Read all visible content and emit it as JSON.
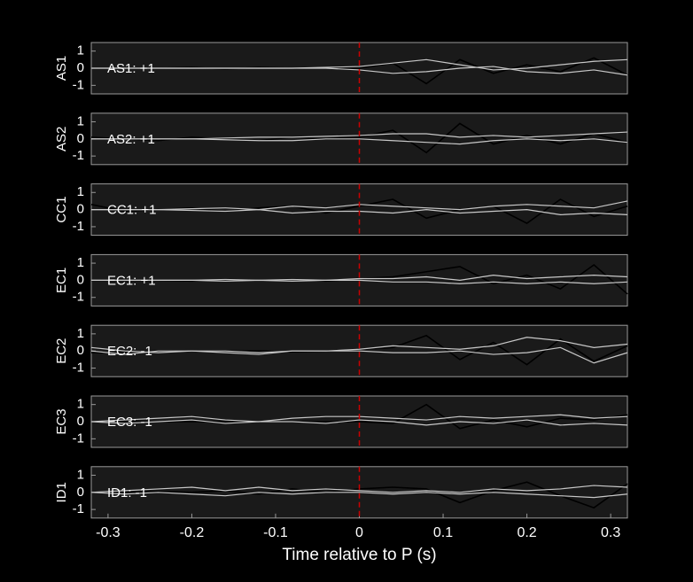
{
  "chart_data": [
    {
      "type": "line",
      "ylabel": "AS1",
      "annotation": "AS1: +1",
      "annotation_color": "#cc0000",
      "marker_x": 0,
      "x": [
        -0.32,
        -0.28,
        -0.24,
        -0.2,
        -0.16,
        -0.12,
        -0.08,
        -0.04,
        0,
        0.04,
        0.08,
        0.12,
        0.16,
        0.2,
        0.24,
        0.28,
        0.32
      ],
      "xlim": [
        -0.32,
        0.32
      ],
      "ylim": [
        -1.5,
        1.5
      ],
      "yticks": [
        -1,
        0,
        1
      ],
      "series": [
        {
          "color": "#000000",
          "values": [
            0,
            0,
            0,
            0.05,
            -0.05,
            0.05,
            0,
            0.05,
            0,
            0.3,
            -0.9,
            0.5,
            -0.3,
            0.2,
            -0.2,
            0.6,
            -0.4
          ]
        },
        {
          "color": "#c8c8c8",
          "values": [
            0,
            0,
            0,
            0,
            0,
            0,
            0,
            0.05,
            0.1,
            0.3,
            0.5,
            0.2,
            -0.1,
            0,
            0.2,
            0.4,
            0.5
          ]
        },
        {
          "color": "#c8c8c8",
          "values": [
            0,
            0,
            0,
            0,
            0,
            0,
            0,
            0,
            -0.1,
            -0.3,
            -0.2,
            0,
            0.1,
            -0.2,
            -0.3,
            -0.1,
            -0.4
          ]
        }
      ]
    },
    {
      "type": "line",
      "ylabel": "AS2",
      "annotation": "AS2: +1",
      "annotation_color": "#cc0000",
      "marker_x": 0,
      "x": [
        -0.32,
        -0.28,
        -0.24,
        -0.2,
        -0.16,
        -0.12,
        -0.08,
        -0.04,
        0,
        0.04,
        0.08,
        0.12,
        0.16,
        0.2,
        0.24,
        0.28,
        0.32
      ],
      "xlim": [
        -0.32,
        0.32
      ],
      "ylim": [
        -1.5,
        1.5
      ],
      "yticks": [
        -1,
        0,
        1
      ],
      "series": [
        {
          "color": "#000000",
          "values": [
            0.1,
            0,
            -0.1,
            0.1,
            0,
            -0.1,
            0.1,
            0,
            0.1,
            0.5,
            -0.8,
            0.9,
            -0.3,
            0.2,
            -0.3,
            0.3,
            -0.2
          ]
        },
        {
          "color": "#c8c8c8",
          "values": [
            0,
            0,
            0,
            0,
            0.05,
            0.1,
            0.1,
            0.15,
            0.2,
            0.3,
            0.3,
            0.1,
            0.2,
            0.1,
            0.2,
            0.3,
            0.4
          ]
        },
        {
          "color": "#c8c8c8",
          "values": [
            0,
            0,
            0,
            0,
            -0.05,
            -0.1,
            -0.1,
            0,
            0,
            -0.1,
            -0.2,
            -0.3,
            -0.1,
            0,
            -0.1,
            0,
            -0.2
          ]
        }
      ]
    },
    {
      "type": "line",
      "ylabel": "CC1",
      "annotation": "CC1: +1",
      "annotation_color": "#cc0000",
      "marker_x": 0,
      "x": [
        -0.32,
        -0.28,
        -0.24,
        -0.2,
        -0.16,
        -0.12,
        -0.08,
        -0.04,
        0,
        0.04,
        0.08,
        0.12,
        0.16,
        0.2,
        0.24,
        0.28,
        0.32
      ],
      "xlim": [
        -0.32,
        0.32
      ],
      "ylim": [
        -1.5,
        1.5
      ],
      "yticks": [
        -1,
        0,
        1
      ],
      "series": [
        {
          "color": "#000000",
          "values": [
            0.3,
            -0.1,
            0,
            0.1,
            -0.1,
            0.1,
            0.2,
            -0.2,
            0.2,
            0.6,
            -0.5,
            0,
            0.2,
            -0.8,
            0.6,
            -0.4,
            0.2
          ]
        },
        {
          "color": "#c8c8c8",
          "values": [
            0,
            0,
            0,
            0.05,
            0.1,
            0,
            0.2,
            0.1,
            0.3,
            0.2,
            0.1,
            0,
            0.2,
            0.3,
            0.2,
            0.1,
            0.5
          ]
        },
        {
          "color": "#c8c8c8",
          "values": [
            0,
            0,
            0,
            -0.05,
            -0.1,
            0,
            -0.2,
            -0.1,
            -0.1,
            -0.2,
            0,
            -0.2,
            -0.1,
            0,
            -0.3,
            -0.2,
            -0.3
          ]
        }
      ]
    },
    {
      "type": "line",
      "ylabel": "EC1",
      "annotation": "EC1: +1",
      "annotation_color": "#cc0000",
      "marker_x": 0,
      "x": [
        -0.32,
        -0.28,
        -0.24,
        -0.2,
        -0.16,
        -0.12,
        -0.08,
        -0.04,
        0,
        0.04,
        0.08,
        0.12,
        0.16,
        0.2,
        0.24,
        0.28,
        0.32
      ],
      "xlim": [
        -0.32,
        0.32
      ],
      "ylim": [
        -1.5,
        1.5
      ],
      "yticks": [
        -1,
        0,
        1
      ],
      "series": [
        {
          "color": "#000000",
          "values": [
            0,
            0,
            0,
            -0.05,
            0.05,
            0,
            0.05,
            -0.05,
            0.1,
            0.2,
            0.5,
            0.8,
            -0.2,
            0.3,
            -0.5,
            0.9,
            -0.8
          ]
        },
        {
          "color": "#c8c8c8",
          "values": [
            0,
            0,
            0,
            0,
            0.05,
            0,
            0.05,
            0,
            0.1,
            0.1,
            0.2,
            0,
            0.3,
            0.1,
            0.2,
            0.3,
            0.2
          ]
        },
        {
          "color": "#c8c8c8",
          "values": [
            0,
            0,
            0,
            0,
            -0.05,
            0,
            -0.05,
            0,
            0,
            -0.1,
            -0.1,
            -0.2,
            -0.1,
            -0.2,
            -0.1,
            -0.2,
            -0.1
          ]
        }
      ]
    },
    {
      "type": "line",
      "ylabel": "EC2",
      "annotation": "EC2: -1",
      "annotation_color": "#000099",
      "marker_x": 0,
      "x": [
        -0.32,
        -0.28,
        -0.24,
        -0.2,
        -0.16,
        -0.12,
        -0.08,
        -0.04,
        0,
        0.04,
        0.08,
        0.12,
        0.16,
        0.2,
        0.24,
        0.28,
        0.32
      ],
      "xlim": [
        -0.32,
        0.32
      ],
      "ylim": [
        -1.5,
        1.5
      ],
      "yticks": [
        -1,
        0,
        1
      ],
      "series": [
        {
          "color": "#000000",
          "values": [
            -0.1,
            -0.1,
            0,
            0,
            0,
            0,
            -0.05,
            0,
            0.1,
            0.2,
            0.9,
            -0.5,
            0.5,
            -0.8,
            0.7,
            -0.6,
            0.3
          ]
        },
        {
          "color": "#c8c8c8",
          "values": [
            0.2,
            0,
            -0.1,
            0,
            0,
            -0.1,
            0,
            0,
            0.1,
            0.3,
            0.2,
            0.1,
            0.3,
            0.8,
            0.6,
            0.2,
            0.4
          ]
        },
        {
          "color": "#c8c8c8",
          "values": [
            0,
            -0.2,
            0,
            0,
            -0.1,
            -0.2,
            0,
            0,
            0,
            -0.1,
            -0.1,
            0,
            -0.2,
            -0.1,
            0.2,
            -0.7,
            -0.1
          ]
        }
      ]
    },
    {
      "type": "line",
      "ylabel": "EC3",
      "annotation": "EC3: -1",
      "annotation_color": "#000099",
      "marker_x": 0,
      "x": [
        -0.32,
        -0.28,
        -0.24,
        -0.2,
        -0.16,
        -0.12,
        -0.08,
        -0.04,
        0,
        0.04,
        0.08,
        0.12,
        0.16,
        0.2,
        0.24,
        0.28,
        0.32
      ],
      "xlim": [
        -0.32,
        0.32
      ],
      "ylim": [
        -1.5,
        1.5
      ],
      "yticks": [
        -1,
        0,
        1
      ],
      "series": [
        {
          "color": "#000000",
          "values": [
            0,
            0,
            0,
            0,
            0,
            0,
            0,
            0,
            0,
            -0.1,
            1,
            -0.4,
            0.1,
            -0.3,
            0.2,
            0.1,
            0.4
          ]
        },
        {
          "color": "#c8c8c8",
          "values": [
            0,
            0.1,
            0.2,
            0.3,
            0.1,
            0,
            0.2,
            0.3,
            0.3,
            0.2,
            0.1,
            0.3,
            0.2,
            0.3,
            0.4,
            0.2,
            0.3
          ]
        },
        {
          "color": "#c8c8c8",
          "values": [
            0,
            -0.1,
            0,
            0.1,
            -0.1,
            0,
            0,
            -0.1,
            0.1,
            0,
            -0.2,
            0,
            -0.1,
            0.1,
            -0.2,
            -0.1,
            -0.2
          ]
        }
      ]
    },
    {
      "type": "line",
      "ylabel": "ID1",
      "annotation": "ID1: -1",
      "annotation_color": "#000099",
      "marker_x": 0,
      "x": [
        -0.32,
        -0.28,
        -0.24,
        -0.2,
        -0.16,
        -0.12,
        -0.08,
        -0.04,
        0,
        0.04,
        0.08,
        0.12,
        0.16,
        0.2,
        0.24,
        0.28,
        0.32
      ],
      "xlim": [
        -0.32,
        0.32
      ],
      "ylim": [
        -1.5,
        1.5
      ],
      "yticks": [
        -1,
        0,
        1
      ],
      "xticks": [
        -0.3,
        -0.2,
        -0.1,
        0,
        0.1,
        0.2,
        0.3
      ],
      "xlabel": "Time relative to P (s)",
      "series": [
        {
          "color": "#000000",
          "values": [
            0,
            0,
            0.05,
            0,
            0.1,
            -0.1,
            0.2,
            0,
            0.2,
            0.3,
            0.2,
            -0.6,
            0.1,
            0.6,
            -0.2,
            -0.9,
            0.5
          ]
        },
        {
          "color": "#c8c8c8",
          "values": [
            0,
            0.1,
            0.2,
            0.3,
            0.1,
            0.3,
            0.1,
            0.2,
            0.1,
            0,
            0.1,
            0,
            0.2,
            0.1,
            0.2,
            0.4,
            0.3
          ]
        },
        {
          "color": "#c8c8c8",
          "values": [
            0,
            -0.1,
            0,
            -0.1,
            -0.2,
            0,
            -0.1,
            0,
            0,
            -0.1,
            0,
            -0.1,
            0,
            -0.1,
            -0.2,
            -0.3,
            -0.1
          ]
        }
      ]
    }
  ]
}
